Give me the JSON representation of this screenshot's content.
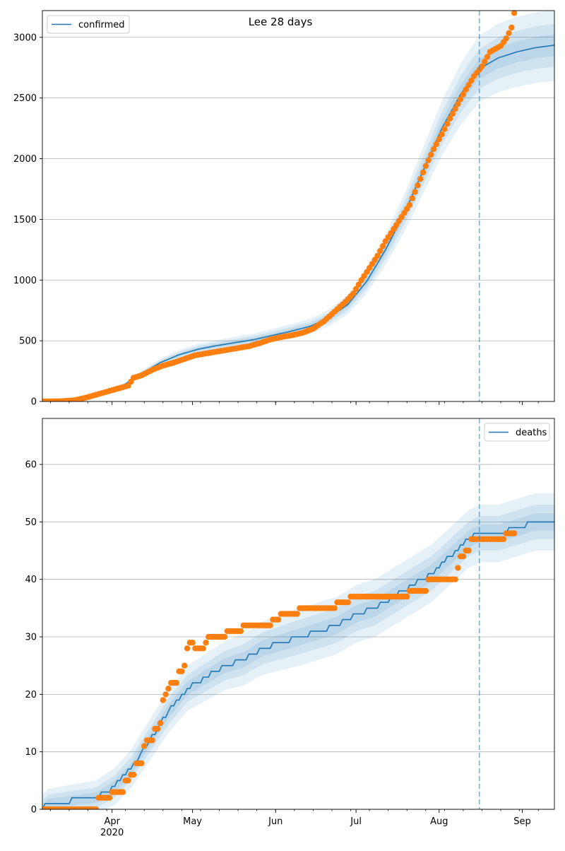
{
  "title": "Lee 28 days",
  "colors": {
    "model": "#1f77b4",
    "observed": "#ff7f0e",
    "band": "#1f77b4",
    "grid": "#b0b0b0"
  },
  "chart_data": [
    {
      "type": "line",
      "title": "Lee 28 days",
      "legend": {
        "label": "confirmed",
        "placement": "top-left"
      },
      "grid": "y-only",
      "x_ticks": [
        "Apr",
        "May",
        "Jun",
        "Jul",
        "Aug",
        "Sep"
      ],
      "x_tick_dates": [
        "2020-04-01",
        "2020-05-01",
        "2020-06-01",
        "2020-07-01",
        "2020-08-01",
        "2020-09-01"
      ],
      "x_year_label": "2020",
      "xlim": [
        "2020-03-06",
        "2020-09-13"
      ],
      "y_ticks": [
        0,
        500,
        1000,
        1500,
        2000,
        2500,
        3000
      ],
      "ylim": [
        0,
        3220
      ],
      "forecast_start": "2020-08-16",
      "model_median": [
        [
          "2020-03-06",
          0
        ],
        [
          "2020-03-15",
          5
        ],
        [
          "2020-03-22",
          25
        ],
        [
          "2020-03-29",
          70
        ],
        [
          "2020-04-05",
          130
        ],
        [
          "2020-04-12",
          230
        ],
        [
          "2020-04-19",
          320
        ],
        [
          "2020-04-26",
          385
        ],
        [
          "2020-05-03",
          430
        ],
        [
          "2020-05-10",
          460
        ],
        [
          "2020-05-17",
          485
        ],
        [
          "2020-05-24",
          510
        ],
        [
          "2020-05-31",
          545
        ],
        [
          "2020-06-07",
          580
        ],
        [
          "2020-06-14",
          620
        ],
        [
          "2020-06-21",
          690
        ],
        [
          "2020-06-28",
          800
        ],
        [
          "2020-07-05",
          990
        ],
        [
          "2020-07-12",
          1250
        ],
        [
          "2020-07-19",
          1550
        ],
        [
          "2020-07-26",
          1900
        ],
        [
          "2020-08-02",
          2250
        ],
        [
          "2020-08-09",
          2530
        ],
        [
          "2020-08-16",
          2740
        ],
        [
          "2020-08-23",
          2830
        ],
        [
          "2020-08-30",
          2880
        ],
        [
          "2020-09-06",
          2915
        ],
        [
          "2020-09-13",
          2935
        ]
      ],
      "band_offsets": [
        0.03,
        0.06,
        0.1
      ],
      "observed": [
        [
          "2020-03-06",
          0
        ],
        [
          "2020-03-13",
          2
        ],
        [
          "2020-03-18",
          10
        ],
        [
          "2020-03-22",
          30
        ],
        [
          "2020-03-26",
          55
        ],
        [
          "2020-03-30",
          80
        ],
        [
          "2020-04-03",
          105
        ],
        [
          "2020-04-07",
          130
        ],
        [
          "2020-04-09",
          195
        ],
        [
          "2020-04-12",
          215
        ],
        [
          "2020-04-16",
          260
        ],
        [
          "2020-04-20",
          295
        ],
        [
          "2020-04-24",
          320
        ],
        [
          "2020-04-28",
          350
        ],
        [
          "2020-05-02",
          380
        ],
        [
          "2020-05-06",
          395
        ],
        [
          "2020-05-10",
          410
        ],
        [
          "2020-05-14",
          425
        ],
        [
          "2020-05-18",
          440
        ],
        [
          "2020-05-22",
          455
        ],
        [
          "2020-05-26",
          480
        ],
        [
          "2020-05-30",
          510
        ],
        [
          "2020-06-03",
          530
        ],
        [
          "2020-06-07",
          545
        ],
        [
          "2020-06-11",
          565
        ],
        [
          "2020-06-15",
          600
        ],
        [
          "2020-06-19",
          660
        ],
        [
          "2020-06-23",
          740
        ],
        [
          "2020-06-27",
          820
        ],
        [
          "2020-06-30",
          890
        ],
        [
          "2020-07-03",
          1000
        ],
        [
          "2020-07-06",
          1100
        ],
        [
          "2020-07-09",
          1200
        ],
        [
          "2020-07-12",
          1320
        ],
        [
          "2020-07-15",
          1420
        ],
        [
          "2020-07-18",
          1520
        ],
        [
          "2020-07-21",
          1620
        ],
        [
          "2020-07-24",
          1780
        ],
        [
          "2020-07-27",
          1940
        ],
        [
          "2020-07-30",
          2080
        ],
        [
          "2020-08-02",
          2200
        ],
        [
          "2020-08-05",
          2330
        ],
        [
          "2020-08-08",
          2450
        ],
        [
          "2020-08-11",
          2570
        ],
        [
          "2020-08-14",
          2680
        ],
        [
          "2020-08-17",
          2760
        ],
        [
          "2020-08-20",
          2880
        ],
        [
          "2020-08-24",
          2930
        ],
        [
          "2020-08-26",
          2990
        ],
        [
          "2020-08-28",
          3080
        ],
        [
          "2020-08-29",
          3200
        ]
      ]
    },
    {
      "type": "line",
      "legend": {
        "label": "deaths",
        "placement": "top-right"
      },
      "grid": "y-only",
      "x_ticks": [
        "Apr",
        "May",
        "Jun",
        "Jul",
        "Aug",
        "Sep"
      ],
      "x_tick_dates": [
        "2020-04-01",
        "2020-05-01",
        "2020-06-01",
        "2020-07-01",
        "2020-08-01",
        "2020-09-01"
      ],
      "x_year_label": "2020",
      "xlim": [
        "2020-03-06",
        "2020-09-13"
      ],
      "y_ticks": [
        0,
        10,
        20,
        30,
        40,
        50,
        60
      ],
      "ylim": [
        0,
        68
      ],
      "forecast_start": "2020-08-16",
      "model_median": [
        [
          "2020-03-06",
          0
        ],
        [
          "2020-03-08",
          1
        ],
        [
          "2020-03-26",
          2
        ],
        [
          "2020-04-02",
          4
        ],
        [
          "2020-04-08",
          7
        ],
        [
          "2020-04-15",
          12
        ],
        [
          "2020-04-22",
          17
        ],
        [
          "2020-04-29",
          21
        ],
        [
          "2020-05-06",
          23
        ],
        [
          "2020-05-13",
          25
        ],
        [
          "2020-05-20",
          26
        ],
        [
          "2020-05-27",
          28
        ],
        [
          "2020-06-03",
          29
        ],
        [
          "2020-06-10",
          30
        ],
        [
          "2020-06-17",
          31
        ],
        [
          "2020-06-24",
          32
        ],
        [
          "2020-07-01",
          34
        ],
        [
          "2020-07-08",
          35
        ],
        [
          "2020-07-15",
          37
        ],
        [
          "2020-07-22",
          39
        ],
        [
          "2020-07-29",
          41
        ],
        [
          "2020-08-05",
          44
        ],
        [
          "2020-08-12",
          47
        ],
        [
          "2020-08-16",
          48
        ],
        [
          "2020-08-23",
          48
        ],
        [
          "2020-08-30",
          49
        ],
        [
          "2020-09-06",
          50
        ],
        [
          "2020-09-13",
          50
        ]
      ],
      "band_offsets": [
        1.5,
        3,
        5
      ],
      "observed": [
        [
          "2020-03-06",
          0
        ],
        [
          "2020-03-26",
          0
        ],
        [
          "2020-03-27",
          2
        ],
        [
          "2020-03-31",
          2
        ],
        [
          "2020-04-01",
          3
        ],
        [
          "2020-04-05",
          3
        ],
        [
          "2020-04-06",
          5
        ],
        [
          "2020-04-08",
          6
        ],
        [
          "2020-04-10",
          8
        ],
        [
          "2020-04-13",
          11
        ],
        [
          "2020-04-14",
          12
        ],
        [
          "2020-04-17",
          14
        ],
        [
          "2020-04-19",
          15
        ],
        [
          "2020-04-20",
          19
        ],
        [
          "2020-04-21",
          20
        ],
        [
          "2020-04-22",
          21
        ],
        [
          "2020-04-23",
          22
        ],
        [
          "2020-04-26",
          24
        ],
        [
          "2020-04-28",
          25
        ],
        [
          "2020-04-29",
          28
        ],
        [
          "2020-04-30",
          29
        ],
        [
          "2020-05-02",
          28
        ],
        [
          "2020-05-06",
          29
        ],
        [
          "2020-05-07",
          30
        ],
        [
          "2020-05-13",
          30
        ],
        [
          "2020-05-14",
          31
        ],
        [
          "2020-05-19",
          31
        ],
        [
          "2020-05-20",
          32
        ],
        [
          "2020-05-30",
          32
        ],
        [
          "2020-05-31",
          33
        ],
        [
          "2020-06-02",
          33
        ],
        [
          "2020-06-03",
          34
        ],
        [
          "2020-06-09",
          34
        ],
        [
          "2020-06-10",
          35
        ],
        [
          "2020-06-23",
          35
        ],
        [
          "2020-06-24",
          36
        ],
        [
          "2020-06-28",
          36
        ],
        [
          "2020-06-29",
          37
        ],
        [
          "2020-07-20",
          37
        ],
        [
          "2020-07-21",
          38
        ],
        [
          "2020-07-27",
          38
        ],
        [
          "2020-07-28",
          40
        ],
        [
          "2020-08-07",
          40
        ],
        [
          "2020-08-08",
          42
        ],
        [
          "2020-08-09",
          44
        ],
        [
          "2020-08-11",
          45
        ],
        [
          "2020-08-13",
          47
        ],
        [
          "2020-08-25",
          47
        ],
        [
          "2020-08-26",
          48
        ],
        [
          "2020-08-29",
          48
        ]
      ]
    }
  ]
}
